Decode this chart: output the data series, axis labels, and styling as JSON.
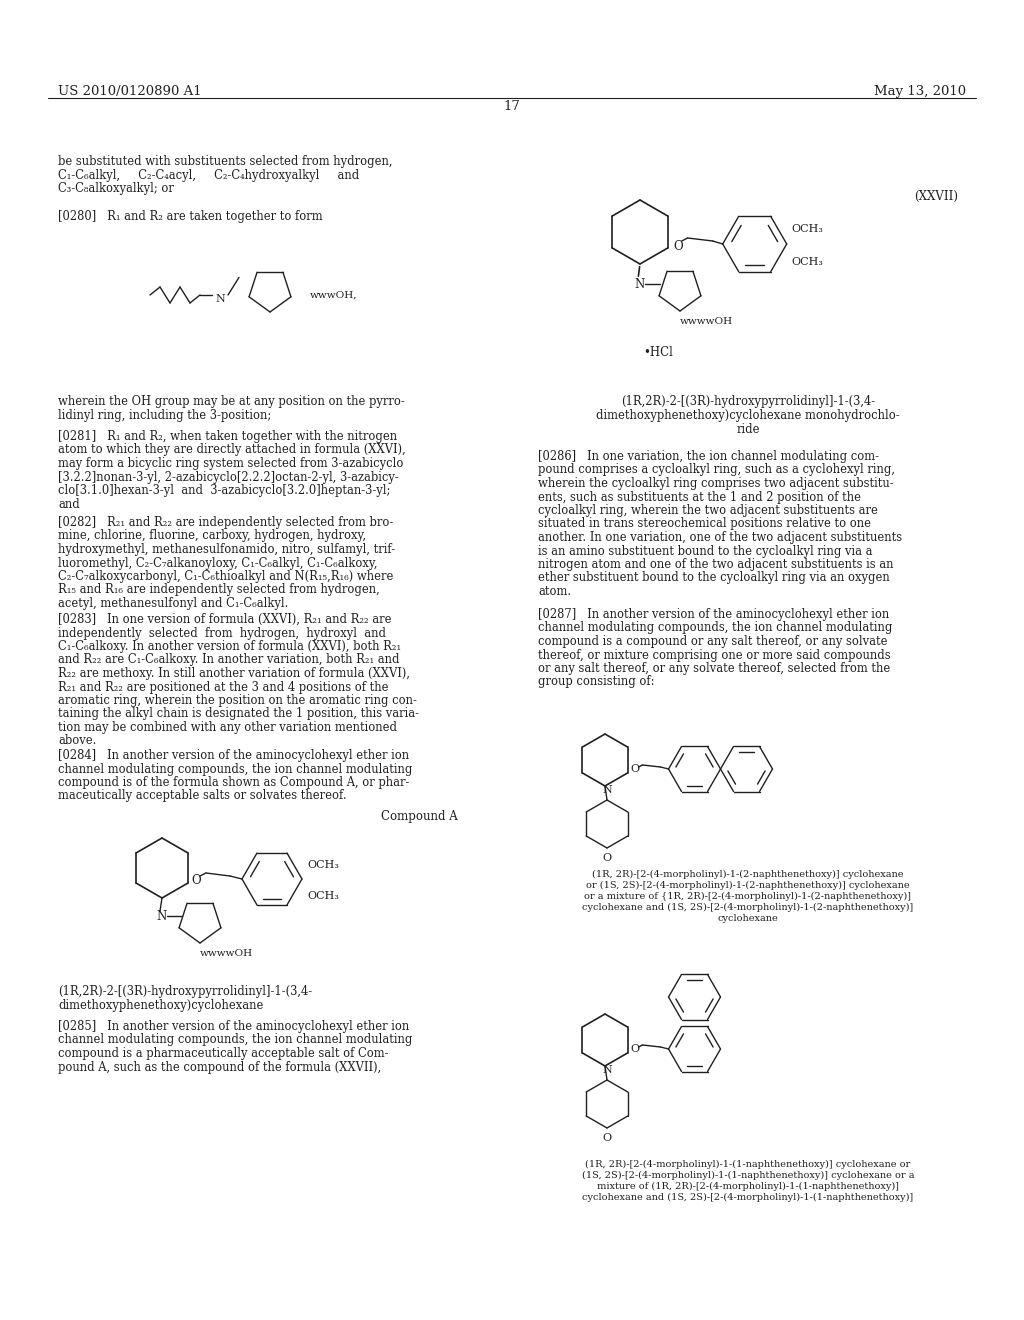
{
  "bg_color": "#ffffff",
  "text_color": "#231f20",
  "header_left": "US 2010/0120890 A1",
  "header_right": "May 13, 2010",
  "page_number": "17",
  "fig_width": 10.24,
  "fig_height": 13.2,
  "dpi": 100
}
